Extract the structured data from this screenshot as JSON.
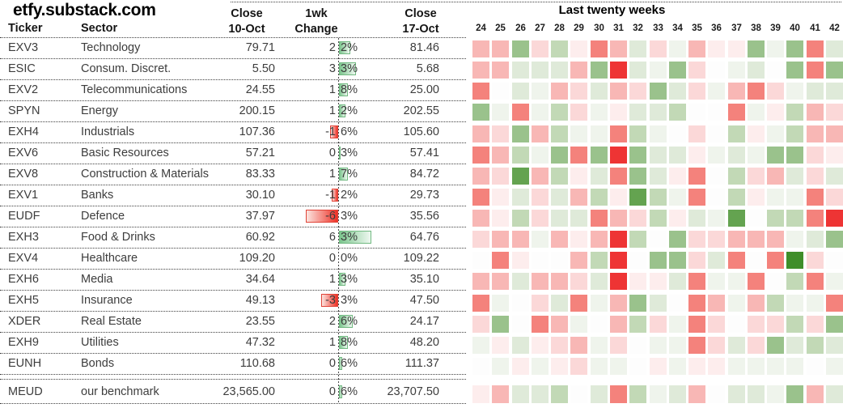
{
  "chart_data": [
    {
      "type": "table",
      "title": "etfy.substack.com",
      "column_headers": {
        "ticker": "Ticker",
        "sector": "Sector",
        "close_before_line1": "Close",
        "close_before_line2": "10-Oct",
        "change_line1": "1wk",
        "change_line2": "Change",
        "close_after_line1": "Close",
        "close_after_line2": "17-Oct"
      },
      "rows": [
        {
          "ticker": "EXV3",
          "sector": "Technology",
          "close_10oct": "79.71",
          "change_pct": 2.2,
          "close_17oct": "81.46"
        },
        {
          "ticker": "ESIC",
          "sector": "Consum. Discret.",
          "close_10oct": "5.50",
          "change_pct": 3.3,
          "close_17oct": "5.68"
        },
        {
          "ticker": "EXV2",
          "sector": "Telecommunications",
          "close_10oct": "24.55",
          "change_pct": 1.8,
          "close_17oct": "25.00"
        },
        {
          "ticker": "SPYN",
          "sector": "Energy",
          "close_10oct": "200.15",
          "change_pct": 1.2,
          "close_17oct": "202.55"
        },
        {
          "ticker": "EXH4",
          "sector": "Industrials",
          "close_10oct": "107.36",
          "change_pct": -1.6,
          "close_17oct": "105.60"
        },
        {
          "ticker": "EXV6",
          "sector": "Basic Resources",
          "close_10oct": "57.21",
          "change_pct": 0.3,
          "close_17oct": "57.41"
        },
        {
          "ticker": "EXV8",
          "sector": "Construction & Materials",
          "close_10oct": "83.33",
          "change_pct": 1.7,
          "close_17oct": "84.72"
        },
        {
          "ticker": "EXV1",
          "sector": "Banks",
          "close_10oct": "30.10",
          "change_pct": -1.2,
          "close_17oct": "29.73"
        },
        {
          "ticker": "EUDF",
          "sector": "Defence",
          "close_10oct": "37.97",
          "change_pct": -6.3,
          "close_17oct": "35.56"
        },
        {
          "ticker": "EXH3",
          "sector": "Food & Drinks",
          "close_10oct": "60.92",
          "change_pct": 6.3,
          "close_17oct": "64.76"
        },
        {
          "ticker": "EXV4",
          "sector": "Healthcare",
          "close_10oct": "109.20",
          "change_pct": 0.0,
          "close_17oct": "109.22"
        },
        {
          "ticker": "EXH6",
          "sector": "Media",
          "close_10oct": "34.64",
          "change_pct": 1.3,
          "close_17oct": "35.10"
        },
        {
          "ticker": "EXH5",
          "sector": "Insurance",
          "close_10oct": "49.13",
          "change_pct": -3.3,
          "close_17oct": "47.50"
        },
        {
          "ticker": "XDER",
          "sector": "Real Estate",
          "close_10oct": "23.55",
          "change_pct": 2.6,
          "close_17oct": "24.17"
        },
        {
          "ticker": "EXH9",
          "sector": "Utilities",
          "close_10oct": "47.32",
          "change_pct": 1.8,
          "close_17oct": "48.20"
        },
        {
          "ticker": "EUNH",
          "sector": "Bonds",
          "close_10oct": "110.68",
          "change_pct": 0.6,
          "close_17oct": "111.37"
        }
      ],
      "benchmark_row": {
        "ticker": "MEUD",
        "sector": "our benchmark",
        "close_10oct": "23,565.00",
        "change_pct": 0.6,
        "close_17oct": "23,707.50"
      },
      "databar_colors": {
        "positive": "#7cc68e",
        "negative": "#ee3126",
        "zero_line": "#4a4a4a"
      }
    },
    {
      "type": "heatmap",
      "title": "Last twenty weeks",
      "x_labels": [
        "24",
        "25",
        "26",
        "27",
        "28",
        "29",
        "30",
        "31",
        "32",
        "33",
        "34",
        "35",
        "36",
        "37",
        "38",
        "39",
        "40",
        "41",
        "42"
      ],
      "color_legend": {
        "r4": "#ee3434",
        "r3": "#f4827c",
        "r2": "#f8b7b5",
        "r1": "#fbd8d8",
        "r0": "#fdeded",
        "w": "#fdfdfd",
        "g0": "#eff4ec",
        "g1": "#dfead9",
        "g2": "#c2d9b6",
        "g3": "#9ac28c",
        "g4": "#64a350",
        "g5": "#3f8e2a"
      },
      "rows": [
        {
          "ticker": "EXV3",
          "cells": [
            "r2",
            "r2",
            "g3",
            "r1",
            "g2",
            "r0",
            "r3",
            "r2",
            "g1",
            "r1",
            "g0",
            "r2",
            "r0",
            "r0",
            "g3",
            "g0",
            "g3",
            "r3",
            "g1"
          ]
        },
        {
          "ticker": "ESIC",
          "cells": [
            "r2",
            "r2",
            "g1",
            "g1",
            "g1",
            "r2",
            "g3",
            "r4",
            "g1",
            "g0",
            "g3",
            "r1",
            "w",
            "g0",
            "g1",
            "w",
            "g3",
            "r3",
            "g3"
          ]
        },
        {
          "ticker": "EXV2",
          "cells": [
            "r3",
            "w",
            "g1",
            "g0",
            "r2",
            "r1",
            "g1",
            "r2",
            "r1",
            "g3",
            "g1",
            "r1",
            "g0",
            "r2",
            "r3",
            "r1",
            "g0",
            "g1",
            "g1"
          ]
        },
        {
          "ticker": "SPYN",
          "cells": [
            "g3",
            "g0",
            "r3",
            "g0",
            "g2",
            "r1",
            "g0",
            "r0",
            "g1",
            "g1",
            "g2",
            "w",
            "w",
            "r3",
            "g0",
            "r0",
            "g2",
            "r2",
            "r1"
          ]
        },
        {
          "ticker": "EXH4",
          "cells": [
            "r2",
            "r1",
            "g3",
            "r2",
            "g2",
            "g0",
            "g0",
            "r3",
            "g2",
            "g0",
            "w",
            "r1",
            "w",
            "g2",
            "r0",
            "g0",
            "g2",
            "r2",
            "r2"
          ]
        },
        {
          "ticker": "EXV6",
          "cells": [
            "r3",
            "r2",
            "g2",
            "g0",
            "g3",
            "r3",
            "g3",
            "r4",
            "g3",
            "g1",
            "g1",
            "r0",
            "g0",
            "g1",
            "g0",
            "g3",
            "g3",
            "r1",
            "r0"
          ]
        },
        {
          "ticker": "EXV8",
          "cells": [
            "r2",
            "r1",
            "g4",
            "r2",
            "g2",
            "r0",
            "g1",
            "r3",
            "g3",
            "g1",
            "r0",
            "r3",
            "w",
            "g2",
            "r1",
            "r2",
            "g1",
            "r1",
            "g1"
          ]
        },
        {
          "ticker": "EXV1",
          "cells": [
            "r3",
            "r0",
            "g1",
            "r1",
            "g1",
            "r2",
            "g2",
            "r0",
            "g4",
            "g2",
            "g0",
            "r3",
            "w",
            "g2",
            "r0",
            "g0",
            "g0",
            "r3",
            "r1"
          ]
        },
        {
          "ticker": "EUDF",
          "cells": [
            "r2",
            "r0",
            "g2",
            "r1",
            "g1",
            "g1",
            "r3",
            "r2",
            "r1",
            "g2",
            "r0",
            "g1",
            "g0",
            "g4",
            "w",
            "g2",
            "g2",
            "r3",
            "r4"
          ]
        },
        {
          "ticker": "EXH3",
          "cells": [
            "r1",
            "r2",
            "r2",
            "g0",
            "r2",
            "r0",
            "r2",
            "r4",
            "g2",
            "w",
            "g3",
            "r1",
            "r1",
            "r2",
            "r2",
            "r2",
            "g0",
            "g1",
            "g3"
          ]
        },
        {
          "ticker": "EXV4",
          "cells": [
            "w",
            "r3",
            "r0",
            "w",
            "w",
            "r2",
            "g2",
            "r4",
            "w",
            "g3",
            "g3",
            "r1",
            "g1",
            "r3",
            "w",
            "r3",
            "g5",
            "r1",
            "w"
          ]
        },
        {
          "ticker": "EXH6",
          "cells": [
            "r2",
            "r2",
            "g1",
            "r2",
            "r2",
            "r1",
            "g1",
            "r4",
            "r0",
            "r0",
            "g1",
            "r3",
            "g0",
            "g0",
            "r3",
            "w",
            "g2",
            "r3",
            "g0"
          ]
        },
        {
          "ticker": "EXH5",
          "cells": [
            "r3",
            "g0",
            "w",
            "r1",
            "g1",
            "r3",
            "g0",
            "r2",
            "g3",
            "g1",
            "w",
            "r3",
            "r2",
            "g0",
            "r2",
            "g2",
            "g0",
            "g0",
            "r3"
          ]
        },
        {
          "ticker": "XDER",
          "cells": [
            "r1",
            "g3",
            "w",
            "r3",
            "r2",
            "g0",
            "w",
            "r2",
            "g2",
            "r1",
            "g0",
            "r3",
            "r1",
            "w",
            "r1",
            "r1",
            "g2",
            "r1",
            "g3"
          ]
        },
        {
          "ticker": "EXH9",
          "cells": [
            "g0",
            "r0",
            "g1",
            "r0",
            "r1",
            "r2",
            "g0",
            "r1",
            "w",
            "g0",
            "g0",
            "r3",
            "r1",
            "g1",
            "r1",
            "g3",
            "g1",
            "g2",
            "g1"
          ]
        },
        {
          "ticker": "EUNH",
          "cells": [
            "w",
            "g0",
            "r0",
            "g0",
            "r0",
            "r1",
            "g0",
            "g0",
            "w",
            "r0",
            "g0",
            "r0",
            "r0",
            "g0",
            "g0",
            "g0",
            "g0",
            "w",
            "g0"
          ]
        }
      ],
      "benchmark_row": {
        "ticker": "MEUD",
        "cells": [
          "r0",
          "r2",
          "g1",
          "g1",
          "g2",
          "w",
          "g1",
          "r3",
          "g2",
          "g0",
          "g1",
          "r2",
          "w",
          "g1",
          "g1",
          "g0",
          "g3",
          "r2",
          "g1"
        ]
      }
    }
  ]
}
